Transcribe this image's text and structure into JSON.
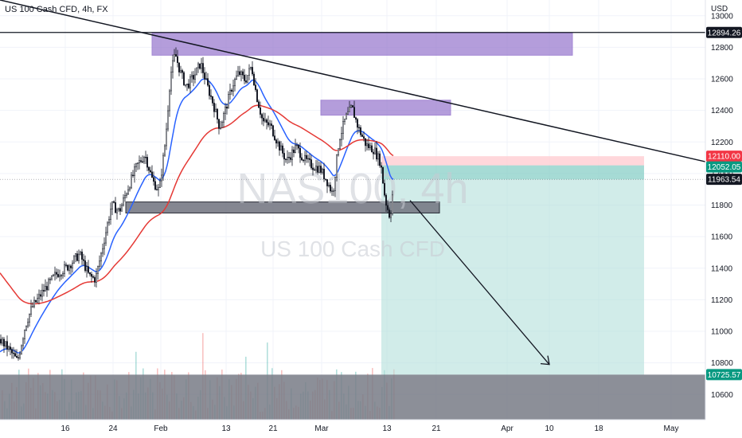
{
  "header": {
    "title": "US 100 Cash CFD, 4h, FX"
  },
  "watermark": {
    "symbol": "NAS100, 4h",
    "name": "US 100 Cash CFD"
  },
  "colors": {
    "bull": "#26a69a",
    "bear": "#ef5350",
    "candle": "#131722",
    "ema_fast": "#2962ff",
    "ema_slow": "#e53935",
    "zone": "#9575cd",
    "support": "#787b86",
    "target": "#b2dfdb",
    "stop": "#ffcdd2"
  },
  "chart_data": {
    "type": "candlestick",
    "currency": "USD",
    "ylim": [
      10440,
      13100
    ],
    "x_ticks": [
      "16",
      "24",
      "Feb",
      "13",
      "21",
      "Mar",
      "13",
      "21",
      "Apr",
      "10",
      "18",
      "May"
    ],
    "y_ticks": [
      13000,
      12800,
      12600,
      12400,
      12200,
      12000,
      11800,
      11600,
      11400,
      11200,
      11000,
      10800,
      10600
    ],
    "price_labels": [
      {
        "value": "12894.26",
        "bg": "#131722",
        "fg": "#ffffff"
      },
      {
        "value": "12110.00",
        "bg": "#f23645",
        "fg": "#ffffff"
      },
      {
        "value": "12052.05",
        "bg": "#089981",
        "fg": "#ffffff"
      },
      {
        "value": "11963.54",
        "bg": "#131722",
        "fg": "#ffffff"
      },
      {
        "value": "10725.57",
        "bg": "#089981",
        "fg": "#ffffff"
      }
    ],
    "levels": {
      "resistance_line": 12894.26,
      "stop": 12110.0,
      "entry": 12052.05,
      "current": 11963.54,
      "target": 10725.57
    },
    "zones": [
      {
        "name": "supply-zone-upper",
        "from": 12750,
        "to": 12890
      },
      {
        "name": "supply-zone-lower",
        "from": 12370,
        "to": 12465
      },
      {
        "name": "support-zone",
        "from": 11750,
        "to": 11820
      }
    ],
    "projection": {
      "from": 11830,
      "to": 10790
    },
    "close_path": [
      [
        0,
        10950
      ],
      [
        12,
        10880
      ],
      [
        22,
        10810
      ],
      [
        32,
        11040
      ],
      [
        40,
        11150
      ],
      [
        55,
        11260
      ],
      [
        70,
        11360
      ],
      [
        85,
        11410
      ],
      [
        100,
        11490
      ],
      [
        112,
        11350
      ],
      [
        120,
        11330
      ],
      [
        130,
        11560
      ],
      [
        140,
        11800
      ],
      [
        150,
        11760
      ],
      [
        160,
        11900
      ],
      [
        172,
        12050
      ],
      [
        182,
        12120
      ],
      [
        192,
        11950
      ],
      [
        200,
        11890
      ],
      [
        208,
        12220
      ],
      [
        214,
        12620
      ],
      [
        220,
        12760
      ],
      [
        226,
        12650
      ],
      [
        234,
        12550
      ],
      [
        244,
        12620
      ],
      [
        252,
        12700
      ],
      [
        260,
        12560
      ],
      [
        268,
        12440
      ],
      [
        276,
        12290
      ],
      [
        284,
        12420
      ],
      [
        292,
        12560
      ],
      [
        300,
        12640
      ],
      [
        308,
        12590
      ],
      [
        316,
        12680
      ],
      [
        322,
        12500
      ],
      [
        330,
        12330
      ],
      [
        340,
        12300
      ],
      [
        350,
        12180
      ],
      [
        360,
        12080
      ],
      [
        372,
        12170
      ],
      [
        382,
        12090
      ],
      [
        392,
        12050
      ],
      [
        402,
        12030
      ],
      [
        410,
        11960
      ],
      [
        418,
        11870
      ],
      [
        426,
        12220
      ],
      [
        434,
        12350
      ],
      [
        442,
        12420
      ],
      [
        450,
        12290
      ],
      [
        460,
        12180
      ],
      [
        470,
        12150
      ],
      [
        478,
        12070
      ],
      [
        484,
        11830
      ],
      [
        490,
        11720
      ],
      [
        495,
        11960
      ]
    ]
  }
}
